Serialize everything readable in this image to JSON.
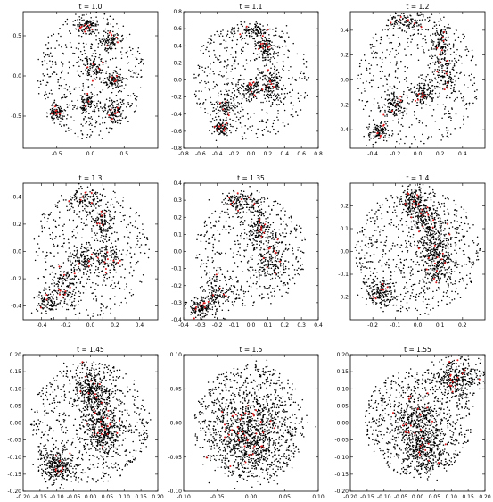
{
  "chart_data": [
    {
      "type": "scatter",
      "title": "t = 1.0",
      "xlim": [
        -1.0,
        1.0
      ],
      "ylim": [
        -0.9,
        0.8
      ],
      "xticks": [
        -0.5,
        0.0,
        0.5
      ],
      "xtick_labels": [
        "-0.5",
        "0.0",
        "0.5"
      ],
      "yticks": [
        -0.5,
        0.0,
        0.5
      ],
      "ytick_labels": [
        "-0.5",
        "0.0",
        "0.5"
      ],
      "series": [
        {
          "color": "#000000",
          "shape": "disk",
          "radius": 0.8,
          "n_points": 1100
        },
        {
          "color": "#e0191b",
          "n_points": 40
        }
      ],
      "clusters": [
        [
          -0.05,
          0.62,
          0.08,
          0.05
        ],
        [
          0.3,
          0.45,
          0.07,
          0.06
        ],
        [
          0.05,
          0.1,
          0.08,
          0.08
        ],
        [
          0.35,
          -0.05,
          0.07,
          0.06
        ],
        [
          -0.5,
          -0.45,
          0.07,
          0.06
        ],
        [
          -0.05,
          -0.35,
          0.07,
          0.07
        ],
        [
          0.35,
          -0.45,
          0.07,
          0.06
        ]
      ]
    },
    {
      "type": "scatter",
      "title": "t = 1.1",
      "xlim": [
        -0.8,
        0.8
      ],
      "ylim": [
        -0.8,
        0.8
      ],
      "xticks": [
        -0.8,
        -0.6,
        -0.4,
        -0.2,
        0.0,
        0.2,
        0.4,
        0.6,
        0.8
      ],
      "xtick_labels": [
        "-0.8",
        "-0.6",
        "-0.4",
        "-0.2",
        "0.0",
        "0.2",
        "0.4",
        "0.6",
        "0.8"
      ],
      "yticks": [
        -0.8,
        -0.6,
        -0.4,
        -0.2,
        0.0,
        0.2,
        0.4,
        0.6,
        0.8
      ],
      "ytick_labels": [
        "-0.8",
        "-0.6",
        "-0.4",
        "-0.2",
        "0.0",
        "0.2",
        "0.4",
        "0.6",
        "0.8"
      ],
      "series": [
        {
          "color": "#000000",
          "shape": "disk",
          "radius": 0.7,
          "n_points": 1100
        },
        {
          "color": "#e0191b",
          "n_points": 40
        }
      ],
      "clusters": [
        [
          0.0,
          0.58,
          0.12,
          0.04
        ],
        [
          0.18,
          0.38,
          0.05,
          0.08
        ],
        [
          0.25,
          -0.05,
          0.06,
          0.1
        ],
        [
          -0.3,
          -0.3,
          0.07,
          0.07
        ],
        [
          -0.35,
          -0.55,
          0.05,
          0.05
        ],
        [
          0.0,
          -0.1,
          0.08,
          0.06
        ]
      ]
    },
    {
      "type": "scatter",
      "title": "t = 1.2",
      "xlim": [
        -0.6,
        0.6
      ],
      "ylim": [
        -0.55,
        0.55
      ],
      "xticks": [
        -0.4,
        -0.2,
        0.0,
        0.2,
        0.4
      ],
      "xtick_labels": [
        "-0.4",
        "-0.2",
        "0.0",
        "0.2",
        "0.4"
      ],
      "yticks": [
        -0.4,
        -0.2,
        0.0,
        0.2,
        0.4
      ],
      "ytick_labels": [
        "-0.4",
        "-0.2",
        "0.0",
        "0.2",
        "0.4"
      ],
      "series": [
        {
          "color": "#000000",
          "shape": "disk",
          "radius": 0.55,
          "n_points": 1100
        },
        {
          "color": "#e0191b",
          "n_points": 40
        }
      ],
      "clusters": [
        [
          -0.1,
          0.47,
          0.1,
          0.04
        ],
        [
          0.2,
          0.3,
          0.04,
          0.08
        ],
        [
          0.25,
          0.05,
          0.06,
          0.08
        ],
        [
          -0.2,
          -0.2,
          0.06,
          0.06
        ],
        [
          -0.35,
          -0.42,
          0.05,
          0.04
        ],
        [
          0.05,
          -0.1,
          0.05,
          0.05
        ]
      ]
    },
    {
      "type": "scatter",
      "title": "t = 1.3",
      "xlim": [
        -0.55,
        0.55
      ],
      "ylim": [
        -0.5,
        0.5
      ],
      "xticks": [
        -0.4,
        -0.3,
        -0.2,
        -0.1,
        0.0,
        0.1,
        0.2,
        0.3,
        0.4
      ],
      "xtick_labels": [
        "-0.4",
        "",
        "-0.2",
        "",
        "0.0",
        "",
        "0.2",
        "",
        "0.4"
      ],
      "yticks": [
        -0.4,
        -0.2,
        0.0,
        0.2,
        0.4
      ],
      "ytick_labels": [
        "-0.4",
        "-0.2",
        "0.0",
        "0.2",
        "0.4"
      ],
      "series": [
        {
          "color": "#000000",
          "shape": "disk",
          "radius": 0.48,
          "n_points": 1100
        },
        {
          "color": "#e0191b",
          "n_points": 40
        }
      ],
      "clusters": [
        [
          -0.05,
          0.38,
          0.08,
          0.04
        ],
        [
          0.1,
          0.22,
          0.04,
          0.06
        ],
        [
          0.15,
          -0.05,
          0.06,
          0.06
        ],
        [
          -0.2,
          -0.25,
          0.06,
          0.06
        ],
        [
          -0.35,
          -0.38,
          0.05,
          0.05
        ],
        [
          -0.05,
          -0.05,
          0.05,
          0.05
        ]
      ]
    },
    {
      "type": "scatter",
      "title": "t = 1.35",
      "xlim": [
        -0.4,
        0.4
      ],
      "ylim": [
        -0.4,
        0.4
      ],
      "xticks": [
        -0.4,
        -0.3,
        -0.2,
        -0.1,
        0.0,
        0.1,
        0.2,
        0.3,
        0.4
      ],
      "xtick_labels": [
        "-0.4",
        "-0.3",
        "-0.2",
        "-0.1",
        "0.0",
        "0.1",
        "0.2",
        "0.3",
        "0.4"
      ],
      "yticks": [
        -0.4,
        -0.3,
        -0.2,
        -0.1,
        0.0,
        0.1,
        0.2,
        0.3,
        0.4
      ],
      "ytick_labels": [
        "-0.4",
        "-0.3",
        "-0.2",
        "-0.1",
        "0.0",
        "0.1",
        "0.2",
        "0.3",
        "0.4"
      ],
      "series": [
        {
          "color": "#000000",
          "shape": "disk",
          "radius": 0.33,
          "n_points": 1200
        },
        {
          "color": "#e0191b",
          "n_points": 40
        }
      ],
      "clusters": [
        [
          -0.05,
          0.3,
          0.06,
          0.03
        ],
        [
          0.05,
          0.15,
          0.03,
          0.05
        ],
        [
          0.12,
          -0.05,
          0.05,
          0.07
        ],
        [
          -0.2,
          -0.25,
          0.05,
          0.06
        ],
        [
          -0.3,
          -0.33,
          0.04,
          0.03
        ]
      ]
    },
    {
      "type": "scatter",
      "title": "t = 1.4",
      "xlim": [
        -0.3,
        0.3
      ],
      "ylim": [
        -0.3,
        0.3
      ],
      "xticks": [
        -0.2,
        -0.1,
        0.0,
        0.1,
        0.2
      ],
      "xtick_labels": [
        "-0.2",
        "-0.1",
        "0.0",
        "0.1",
        "0.2"
      ],
      "yticks": [
        -0.2,
        -0.1,
        0.0,
        0.1,
        0.2
      ],
      "ytick_labels": [
        "-0.2",
        "-0.1",
        "0.0",
        "0.1",
        "0.2"
      ],
      "series": [
        {
          "color": "#000000",
          "shape": "disk",
          "radius": 0.28,
          "n_points": 1500
        },
        {
          "color": "#e0191b",
          "n_points": 40
        }
      ],
      "clusters": [
        [
          -0.02,
          0.23,
          0.03,
          0.03
        ],
        [
          0.03,
          0.15,
          0.03,
          0.05
        ],
        [
          0.07,
          0.05,
          0.035,
          0.05
        ],
        [
          0.09,
          -0.05,
          0.04,
          0.05
        ],
        [
          -0.17,
          -0.18,
          0.03,
          0.03
        ]
      ]
    },
    {
      "type": "scatter",
      "title": "t = 1.45",
      "xlim": [
        -0.2,
        0.2
      ],
      "ylim": [
        -0.2,
        0.2
      ],
      "xticks": [
        -0.2,
        -0.15,
        -0.1,
        -0.05,
        0.0,
        0.05,
        0.1,
        0.15,
        0.2
      ],
      "xtick_labels": [
        "-0.20",
        "-0.15",
        "-0.10",
        "-0.05",
        "0.00",
        "0.05",
        "0.10",
        "0.15",
        "0.20"
      ],
      "yticks": [
        -0.2,
        -0.15,
        -0.1,
        -0.05,
        0.0,
        0.05,
        0.1,
        0.15,
        0.2
      ],
      "ytick_labels": [
        "-0.20",
        "-0.15",
        "-0.10",
        "-0.05",
        "0.00",
        "0.05",
        "0.10",
        "0.15",
        "0.20"
      ],
      "series": [
        {
          "color": "#000000",
          "shape": "disk",
          "radius": 0.18,
          "n_points": 1600
        },
        {
          "color": "#e0191b",
          "n_points": 40
        }
      ],
      "clusters": [
        [
          0.0,
          0.1,
          0.025,
          0.035
        ],
        [
          0.03,
          0.03,
          0.03,
          0.045
        ],
        [
          0.04,
          -0.03,
          0.025,
          0.035
        ],
        [
          -0.1,
          -0.13,
          0.025,
          0.025
        ]
      ]
    },
    {
      "type": "scatter",
      "title": "t = 1.5",
      "xlim": [
        -0.1,
        0.1
      ],
      "ylim": [
        -0.1,
        0.1
      ],
      "xticks": [
        -0.1,
        -0.05,
        0.0,
        0.05,
        0.1
      ],
      "xtick_labels": [
        "-0.10",
        "-0.05",
        "0.00",
        "0.05",
        "0.10"
      ],
      "yticks": [
        -0.1,
        -0.05,
        0.0,
        0.05,
        0.1
      ],
      "ytick_labels": [
        "-0.10",
        "-0.05",
        "0.00",
        "0.05",
        "0.10"
      ],
      "series": [
        {
          "color": "#000000",
          "shape": "disk",
          "radius": 0.085,
          "n_points": 1500
        },
        {
          "color": "#e0191b",
          "n_points": 40
        }
      ],
      "clusters": [
        [
          0.0,
          0.0,
          0.03,
          0.035
        ],
        [
          0.0,
          -0.03,
          0.025,
          0.025
        ]
      ]
    },
    {
      "type": "scatter",
      "title": "t = 1.55",
      "xlim": [
        -0.2,
        0.2
      ],
      "ylim": [
        -0.2,
        0.2
      ],
      "xticks": [
        -0.2,
        -0.15,
        -0.1,
        -0.05,
        0.0,
        0.05,
        0.1,
        0.15,
        0.2
      ],
      "xtick_labels": [
        "-0.20",
        "-0.15",
        "-0.10",
        "-0.05",
        "0.00",
        "0.05",
        "0.10",
        "0.15",
        "0.20"
      ],
      "yticks": [
        -0.2,
        -0.15,
        -0.1,
        -0.05,
        0.0,
        0.05,
        0.1,
        0.15,
        0.2
      ],
      "ytick_labels": [
        "-0.20",
        "-0.15",
        "-0.10",
        "-0.05",
        "0.00",
        "0.05",
        "0.10",
        "0.15",
        "0.20"
      ],
      "series": [
        {
          "color": "#000000",
          "shape": "disk",
          "radius": 0.16,
          "n_points": 1600
        },
        {
          "color": "#e0191b",
          "n_points": 40
        }
      ],
      "clusters": [
        [
          0.0,
          0.0,
          0.045,
          0.05
        ],
        [
          0.12,
          0.13,
          0.035,
          0.03
        ],
        [
          0.02,
          -0.08,
          0.03,
          0.04
        ]
      ]
    }
  ]
}
